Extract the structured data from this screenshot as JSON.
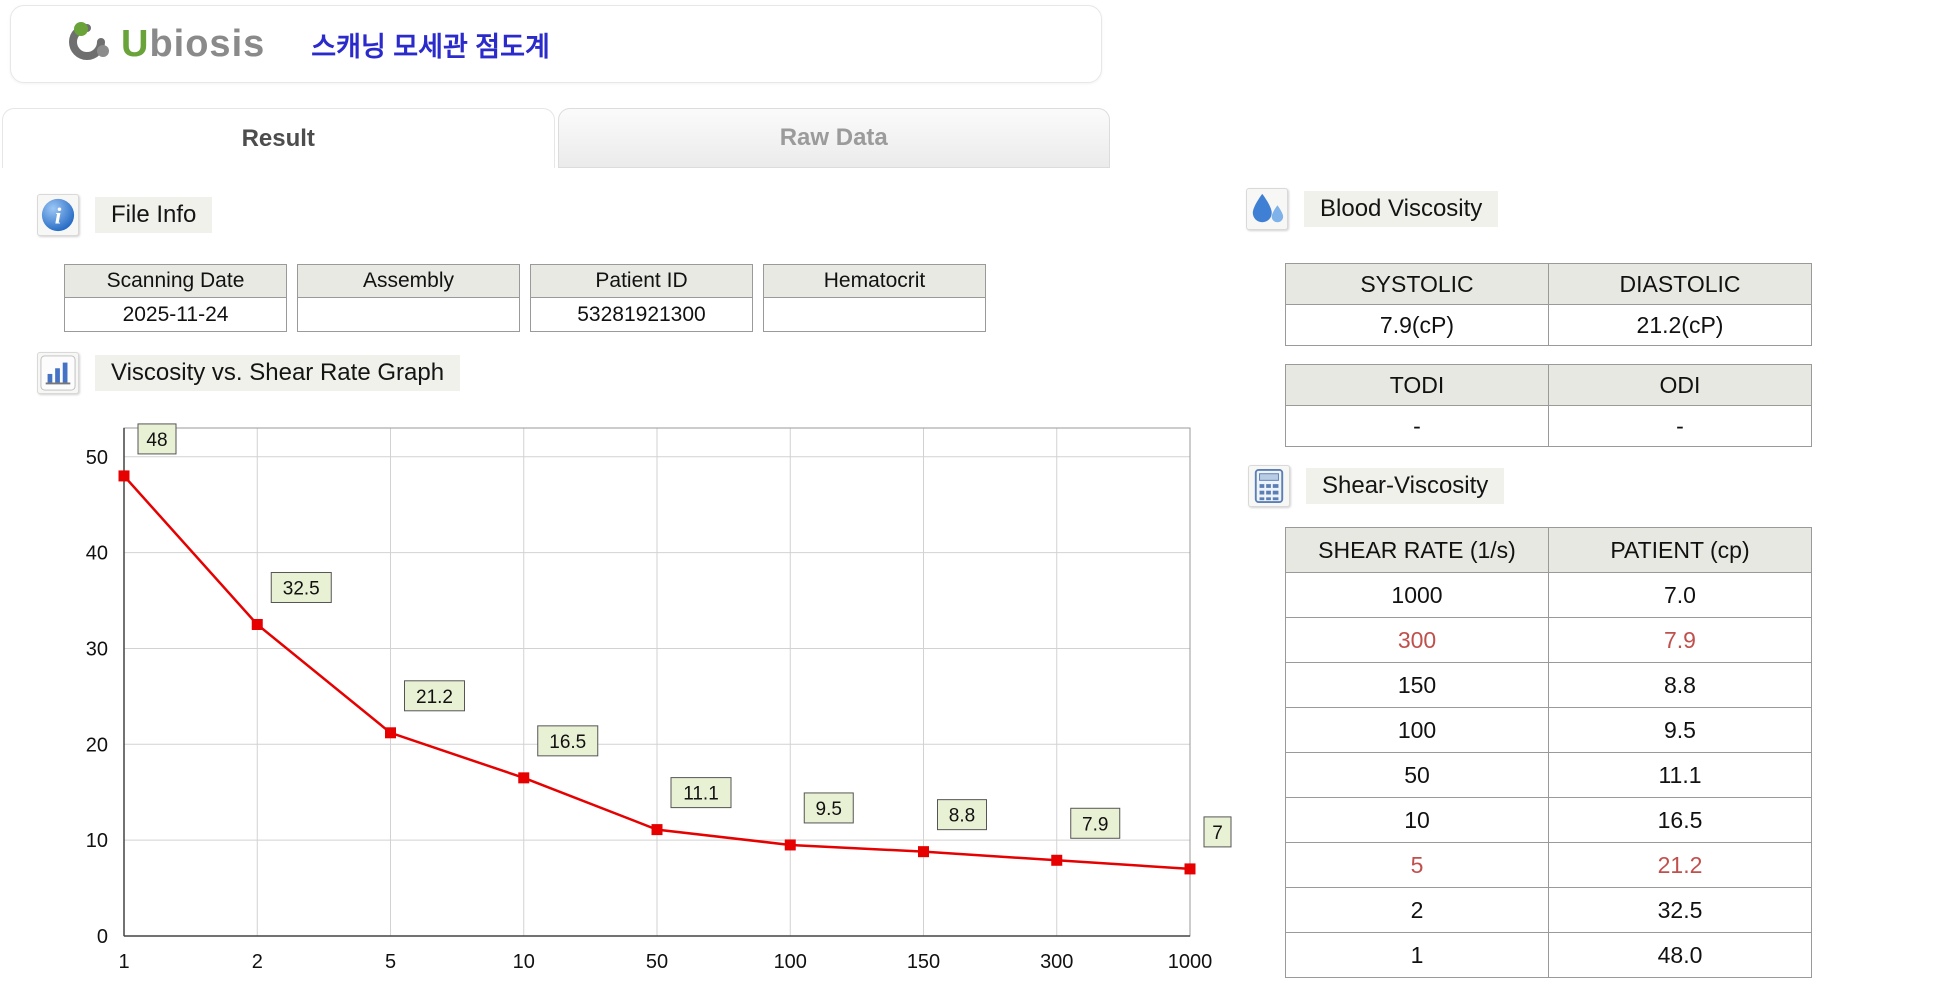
{
  "header": {
    "logo_u": "U",
    "logo_rest": "biosis",
    "title": "스캐닝 모세관 점도계",
    "title_color": "#2b2bcb",
    "logo_accent_green": "#69a33a",
    "logo_gray": "#8a8a8a",
    "logo_icon": "swirl-leaf-icon"
  },
  "tabs": [
    {
      "label": "Result",
      "active": true
    },
    {
      "label": "Raw Data",
      "active": false
    }
  ],
  "file_info": {
    "section_title": "File Info",
    "icon": "info-icon",
    "columns": [
      {
        "header": "Scanning Date",
        "value": "2025-11-24"
      },
      {
        "header": "Assembly",
        "value": ""
      },
      {
        "header": "Patient ID",
        "value": "53281921300"
      },
      {
        "header": "Hematocrit",
        "value": ""
      }
    ]
  },
  "graph_section": {
    "title": "Viscosity vs. Shear Rate Graph",
    "icon": "bar-chart-icon"
  },
  "chart_data": {
    "type": "line",
    "categories": [
      "1",
      "2",
      "5",
      "10",
      "50",
      "100",
      "150",
      "300",
      "1000"
    ],
    "values": [
      48,
      32.5,
      21.2,
      16.5,
      11.1,
      9.5,
      8.8,
      7.9,
      7.0
    ],
    "point_labels": [
      "48",
      "32.5",
      "21.2",
      "16.5",
      "11.1",
      "9.5",
      "8.8",
      "7.9",
      "7"
    ],
    "xlabel": "",
    "ylabel": "",
    "x_scale": "categorical",
    "ylim": [
      0,
      53
    ],
    "yticks": [
      0,
      10,
      20,
      30,
      40,
      50
    ],
    "grid": true,
    "legend": "none",
    "line_color": "#e60000",
    "marker": "square",
    "label_box_fill": "#e9f1d5",
    "label_box_border": "#555555"
  },
  "blood_viscosity": {
    "section_title": "Blood Viscosity",
    "icon": "blood-droplet-icon",
    "table1": {
      "headers": [
        "SYSTOLIC",
        "DIASTOLIC"
      ],
      "values": [
        "7.9(cP)",
        "21.2(cP)"
      ]
    },
    "table2": {
      "headers": [
        "TODI",
        "ODI"
      ],
      "values": [
        "-",
        "-"
      ]
    }
  },
  "shear_viscosity": {
    "section_title": "Shear-Viscosity",
    "icon": "calculator-icon",
    "headers": [
      "SHEAR RATE (1/s)",
      "PATIENT (cp)"
    ],
    "highlight_color": "#c0504d",
    "rows": [
      {
        "shear": "1000",
        "patient": "7.0",
        "highlight": false
      },
      {
        "shear": "300",
        "patient": "7.9",
        "highlight": true
      },
      {
        "shear": "150",
        "patient": "8.8",
        "highlight": false
      },
      {
        "shear": "100",
        "patient": "9.5",
        "highlight": false
      },
      {
        "shear": "50",
        "patient": "11.1",
        "highlight": false
      },
      {
        "shear": "10",
        "patient": "16.5",
        "highlight": false
      },
      {
        "shear": "5",
        "patient": "21.2",
        "highlight": true
      },
      {
        "shear": "2",
        "patient": "32.5",
        "highlight": false
      },
      {
        "shear": "1",
        "patient": "48.0",
        "highlight": false
      }
    ]
  }
}
